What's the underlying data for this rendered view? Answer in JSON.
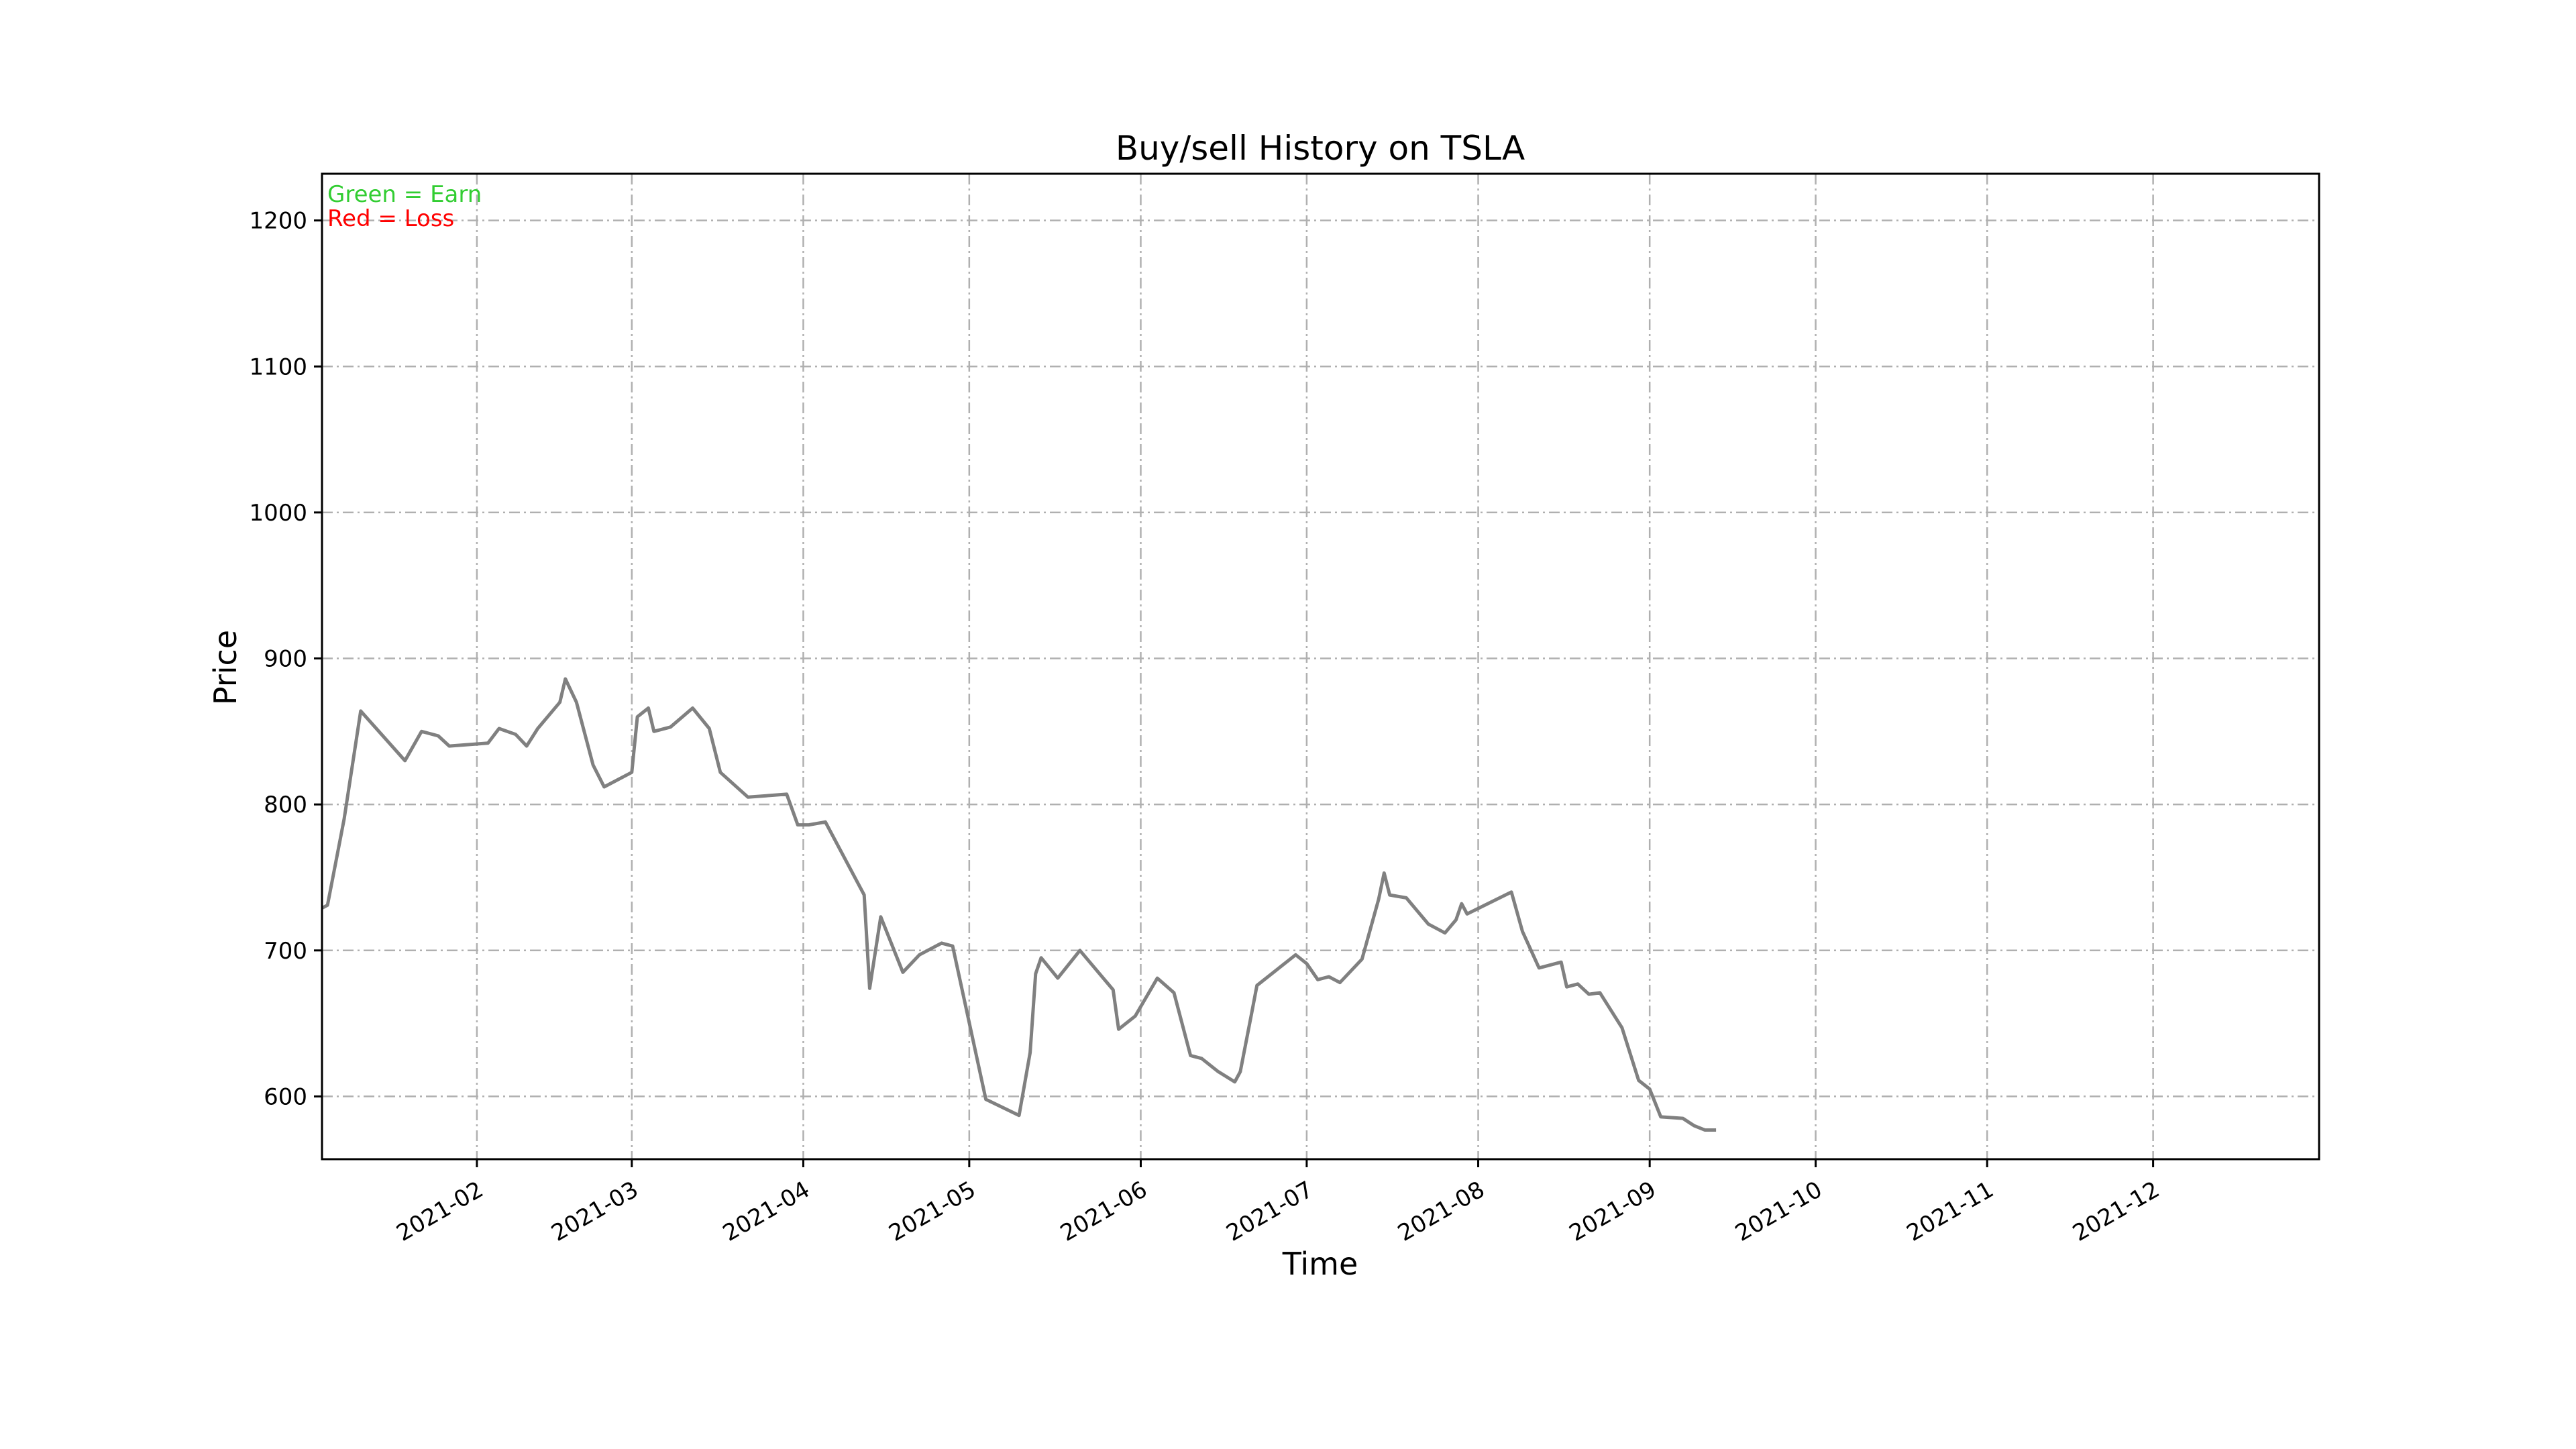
{
  "chart_data": {
    "type": "line",
    "title": "Buy/sell History on TSLA",
    "xlabel": "Time",
    "ylabel": "Price",
    "x_range": [
      "2021-01-04",
      "2021-12-31"
    ],
    "ylim": [
      557,
      1232
    ],
    "grid": true,
    "x_ticks": [
      "2021-02",
      "2021-03",
      "2021-04",
      "2021-05",
      "2021-06",
      "2021-07",
      "2021-08",
      "2021-09",
      "2021-10",
      "2021-11",
      "2021-12"
    ],
    "x_tick_dates": [
      "2021-02-01",
      "2021-03-01",
      "2021-04-01",
      "2021-05-01",
      "2021-06-01",
      "2021-07-01",
      "2021-08-01",
      "2021-09-01",
      "2021-10-01",
      "2021-11-01",
      "2021-12-01"
    ],
    "y_ticks": [
      600,
      700,
      800,
      900,
      1000,
      1100,
      1200
    ],
    "legend": [
      {
        "text": "Green = Earn",
        "color": "#32cd32"
      },
      {
        "text": "Red = Loss",
        "color": "#ff0000"
      }
    ],
    "legend_position": "top-left",
    "colors": {
      "price": "#808080",
      "earn": "#32cd32",
      "loss": "#ff0000"
    },
    "price_series": [
      [
        "2021-01-04",
        729
      ],
      [
        "2021-01-05",
        731
      ],
      [
        "2021-01-07",
        755
      ],
      [
        "2021-01-08",
        790
      ],
      [
        "2021-01-11",
        864
      ],
      [
        "2021-01-15",
        840
      ],
      [
        "2021-01-19",
        830
      ],
      [
        "2021-01-21",
        845
      ],
      [
        "2021-01-22",
        850
      ],
      [
        "2021-01-25",
        847
      ],
      [
        "2021-01-27",
        840
      ],
      [
        "2021-02-01",
        842
      ],
      [
        "2021-02-04",
        843
      ],
      [
        "2021-02-05",
        851
      ],
      [
        "2021-02-08",
        848
      ],
      [
        "2021-02-10",
        840
      ],
      [
        "2021-02-12",
        851
      ],
      [
        "2021-02-16",
        870
      ],
      [
        "2021-02-17",
        886
      ],
      [
        "2021-02-19",
        870
      ],
      [
        "2021-02-22",
        827
      ],
      [
        "2021-02-24",
        812
      ],
      [
        "2021-03-01",
        821
      ],
      [
        "2021-03-02",
        860
      ],
      [
        "2021-03-04",
        866
      ],
      [
        "2021-03-05",
        850
      ],
      [
        "2021-03-08",
        853
      ],
      [
        "2021-03-12",
        866
      ],
      [
        "2021-03-15",
        852
      ],
      [
        "2021-03-17",
        822
      ],
      [
        "2021-03-22",
        805
      ],
      [
        "2021-03-29",
        807
      ],
      [
        "2021-03-31",
        786
      ],
      [
        "2021-04-02",
        786
      ],
      [
        "2021-04-05",
        788
      ],
      [
        "2021-04-12",
        738
      ],
      [
        "2021-04-13",
        675
      ],
      [
        "2021-04-15",
        722
      ],
      [
        "2021-04-19",
        685
      ],
      [
        "2021-04-22",
        696
      ],
      [
        "2021-04-26",
        705
      ],
      [
        "2021-04-28",
        703
      ],
      [
        "2021-05-04",
        598
      ],
      [
        "2021-05-10",
        587
      ],
      [
        "2021-05-11",
        616
      ],
      [
        "2021-05-13",
        655
      ],
      [
        "2021-05-14",
        686
      ],
      [
        "2021-05-17",
        696
      ],
      [
        "2021-05-18",
        683
      ],
      [
        "2021-05-25",
        700
      ],
      [
        "2021-05-27",
        690
      ],
      [
        "2021-06-01",
        671
      ],
      [
        "2021-06-04",
        647
      ],
      [
        "2021-06-09",
        682
      ],
      [
        "2021-06-10",
        673
      ],
      [
        "2021-06-14",
        630
      ],
      [
        "2021-06-15",
        627
      ],
      [
        "2021-06-18",
        619
      ],
      [
        "2021-06-21",
        611
      ],
      [
        "2021-06-22",
        617
      ],
      [
        "2021-06-24",
        651
      ],
      [
        "2021-06-25",
        670
      ],
      [
        "2021-06-30",
        694
      ],
      [
        "2021-07-01",
        688
      ],
      [
        "2021-07-06",
        680
      ],
      [
        "2021-07-07",
        684
      ],
      [
        "2021-07-08",
        678
      ],
      [
        "2021-07-12",
        688
      ],
      [
        "2021-07-13",
        698
      ],
      [
        "2021-07-14",
        735
      ],
      [
        "2021-07-15",
        752
      ],
      [
        "2021-07-16",
        738
      ],
      [
        "2021-07-19",
        734
      ],
      [
        "2021-07-20",
        722
      ],
      [
        "2021-07-22",
        712
      ],
      [
        "2021-07-23",
        720
      ],
      [
        "2021-07-26",
        719
      ],
      [
        "2021-07-27",
        732
      ],
      [
        "2021-07-28",
        725
      ],
      [
        "2021-08-04",
        738
      ],
      [
        "2021-08-06",
        739
      ],
      [
        "2021-08-09",
        713
      ],
      [
        "2021-08-12",
        688
      ],
      [
        "2021-08-17",
        693
      ],
      [
        "2021-08-18",
        674
      ],
      [
        "2021-08-20",
        678
      ],
      [
        "2021-08-21",
        670
      ],
      [
        "2021-08-23",
        673
      ],
      [
        "2021-08-26",
        668
      ],
      [
        "2021-08-30",
        649
      ],
      [
        "2021-09-01",
        626
      ],
      [
        "2021-09-02",
        612
      ],
      [
        "2021-09-03",
        586
      ],
      [
        "2021-09-08",
        582
      ],
      [
        "2021-09-10",
        578
      ],
      [
        "2021-09-13",
        576
      ],
      [
        "2021-09-14",
        577
      ]
    ],
    "price_series_note": "",
    "price_series_full": [
      [
        "2021-01-04",
        729
      ],
      [
        "2021-01-05",
        731
      ],
      [
        "2021-01-08",
        790
      ],
      [
        "2021-01-11",
        864
      ],
      [
        "2021-01-19",
        830
      ],
      [
        "2021-01-22",
        850
      ],
      [
        "2021-01-25",
        847
      ],
      [
        "2021-01-27",
        840
      ],
      [
        "2021-02-03",
        842
      ],
      [
        "2021-02-05",
        852
      ],
      [
        "2021-02-08",
        848
      ],
      [
        "2021-02-10",
        840
      ],
      [
        "2021-02-12",
        852
      ],
      [
        "2021-02-16",
        870
      ],
      [
        "2021-02-17",
        886
      ],
      [
        "2021-02-19",
        870
      ],
      [
        "2021-02-22",
        827
      ],
      [
        "2021-02-24",
        812
      ],
      [
        "2021-03-01",
        822
      ],
      [
        "2021-03-02",
        860
      ],
      [
        "2021-03-04",
        866
      ],
      [
        "2021-03-05",
        850
      ],
      [
        "2021-03-08",
        853
      ],
      [
        "2021-03-12",
        866
      ],
      [
        "2021-03-15",
        852
      ],
      [
        "2021-03-17",
        822
      ],
      [
        "2021-03-22",
        805
      ],
      [
        "2021-03-29",
        807
      ],
      [
        "2021-03-31",
        786
      ],
      [
        "2021-04-02",
        786
      ],
      [
        "2021-04-05",
        788
      ],
      [
        "2021-04-12",
        738
      ],
      [
        "2021-04-13",
        674
      ],
      [
        "2021-04-15",
        723
      ],
      [
        "2021-04-19",
        685
      ],
      [
        "2021-04-22",
        697
      ],
      [
        "2021-04-26",
        705
      ],
      [
        "2021-04-28",
        703
      ],
      [
        "2021-05-04",
        598
      ],
      [
        "2021-05-10",
        587
      ],
      [
        "2021-05-12",
        630
      ],
      [
        "2021-05-13",
        684
      ],
      [
        "2021-05-14",
        695
      ],
      [
        "2021-05-17",
        681
      ],
      [
        "2021-05-21",
        700
      ],
      [
        "2021-05-27",
        673
      ],
      [
        "2021-05-28",
        646
      ],
      [
        "2021-05-31",
        655
      ],
      [
        "2021-06-04",
        681
      ],
      [
        "2021-06-07",
        671
      ],
      [
        "2021-06-10",
        628
      ],
      [
        "2021-06-12",
        626
      ],
      [
        "2021-06-15",
        617
      ],
      [
        "2021-06-18",
        610
      ],
      [
        "2021-06-19",
        617
      ],
      [
        "2021-06-21",
        656
      ],
      [
        "2021-06-22",
        676
      ],
      [
        "2021-06-29",
        697
      ],
      [
        "2021-07-01",
        691
      ],
      [
        "2021-07-03",
        680
      ],
      [
        "2021-07-05",
        682
      ],
      [
        "2021-07-07",
        678
      ],
      [
        "2021-07-11",
        694
      ],
      [
        "2021-07-14",
        735
      ],
      [
        "2021-07-15",
        753
      ],
      [
        "2021-07-16",
        738
      ],
      [
        "2021-07-19",
        736
      ],
      [
        "2021-07-23",
        718
      ],
      [
        "2021-07-26",
        712
      ],
      [
        "2021-07-28",
        721
      ],
      [
        "2021-07-29",
        732
      ],
      [
        "2021-07-30",
        725
      ],
      [
        "2021-08-07",
        740
      ],
      [
        "2021-08-09",
        713
      ],
      [
        "2021-08-12",
        688
      ],
      [
        "2021-08-16",
        692
      ],
      [
        "2021-08-17",
        675
      ],
      [
        "2021-08-19",
        677
      ],
      [
        "2021-08-21",
        670
      ],
      [
        "2021-08-23",
        671
      ],
      [
        "2021-08-27",
        647
      ],
      [
        "2021-08-30",
        611
      ],
      [
        "2021-09-01",
        605
      ],
      [
        "2021-09-03",
        586
      ],
      [
        "2021-09-07",
        585
      ],
      [
        "2021-09-09",
        580
      ],
      [
        "2021-09-11",
        577
      ],
      [
        "2021-09-13",
        577
      ]
    ],
    "segments": [],
    "annotations": []
  }
}
